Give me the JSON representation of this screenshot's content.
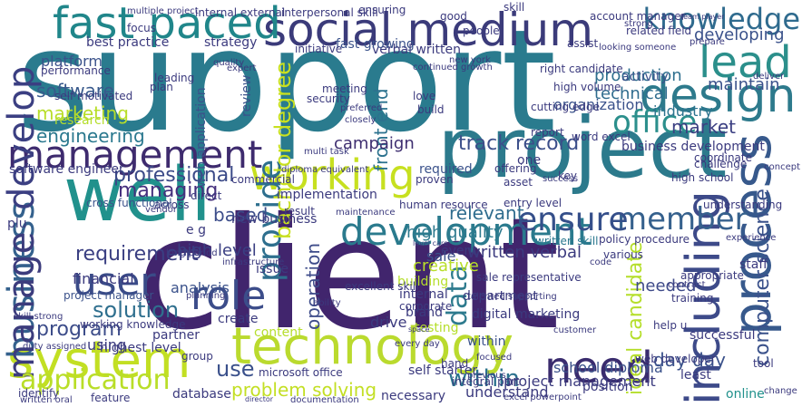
{
  "colors": {
    "background": "#ffffff",
    "palette": [
      "#440154",
      "#3b528b",
      "#21918c",
      "#5ec962",
      "#b5de2b",
      "#fde725"
    ]
  },
  "words": [
    {
      "text": "support",
      "color": "#2a7b8e"
    },
    {
      "text": "client",
      "color": "#41256d"
    },
    {
      "text": "well",
      "color": "#21918c"
    },
    {
      "text": "project",
      "color": "#2c7a8c"
    },
    {
      "text": "social medium",
      "color": "#3b3b7a"
    },
    {
      "text": "fast paced",
      "color": "#20868a"
    },
    {
      "text": "system",
      "color": "#c2df23"
    },
    {
      "text": "technology",
      "color": "#bada2e"
    },
    {
      "text": "management",
      "color": "#3e2b6e"
    },
    {
      "text": "working",
      "color": "#c7e020"
    },
    {
      "text": "development",
      "color": "#2a7a8d"
    },
    {
      "text": "need",
      "color": "#3a2c6e"
    },
    {
      "text": "design",
      "color": "#2d7a8c"
    },
    {
      "text": "lead",
      "color": "#2b8f8b"
    },
    {
      "text": "knowledge",
      "color": "#2f6b8e"
    },
    {
      "text": "role",
      "color": "#3c4d8a"
    },
    {
      "text": "process",
      "color": "#37598c"
    },
    {
      "text": "including",
      "color": "#3d4a89"
    },
    {
      "text": "business",
      "color": "#34618d"
    },
    {
      "text": "develop",
      "color": "#3b3f82"
    },
    {
      "text": "manage",
      "color": "#3c3c7d"
    },
    {
      "text": "user",
      "color": "#3a4b88"
    },
    {
      "text": "provide",
      "color": "#2e6f8e"
    },
    {
      "text": "member",
      "color": "#36618d"
    },
    {
      "text": "ensure",
      "color": "#354f8a"
    },
    {
      "text": "office",
      "color": "#2b8f8c"
    },
    {
      "text": "data",
      "color": "#2e7b8e"
    },
    {
      "text": "application",
      "color": "#b9de28"
    },
    {
      "text": "use",
      "color": "#3a508b"
    },
    {
      "text": "within",
      "color": "#2c738e"
    },
    {
      "text": "requirement",
      "color": "#3a3f82"
    },
    {
      "text": "professional",
      "color": "#3b4a88"
    },
    {
      "text": "solution",
      "color": "#2f6f8e"
    },
    {
      "text": "computer science",
      "color": "#3b528b"
    },
    {
      "text": "ideal candidate",
      "color": "#b5de2b"
    },
    {
      "text": "program",
      "color": "#3c4c89"
    },
    {
      "text": "managing",
      "color": "#46307e"
    },
    {
      "text": "bachelor degree",
      "color": "#c8e020"
    },
    {
      "text": "front end",
      "color": "#2c728e"
    },
    {
      "text": "operation",
      "color": "#3e4c8a"
    },
    {
      "text": "marketing",
      "color": "#b8de29"
    },
    {
      "text": "engineering",
      "color": "#2a788e"
    },
    {
      "text": "software",
      "color": "#38598c"
    },
    {
      "text": "track record",
      "color": "#3c4f8a"
    },
    {
      "text": "campaign",
      "color": "#3e2e70"
    },
    {
      "text": "industry",
      "color": "#2c738e"
    },
    {
      "text": "technical",
      "color": "#2f6c8e"
    },
    {
      "text": "production",
      "color": "#2e6f8e"
    },
    {
      "text": "market",
      "color": "#3b3f82"
    },
    {
      "text": "relevant",
      "color": "#2f6c8e"
    },
    {
      "text": "high level",
      "color": "#3a3f82"
    },
    {
      "text": "based",
      "color": "#3c4d8a"
    },
    {
      "text": "problem solving",
      "color": "#c3df24"
    },
    {
      "text": "project management",
      "color": "#3b3a7e"
    },
    {
      "text": "written verbal",
      "color": "#3b3a7e"
    },
    {
      "text": "within",
      "color": "#3b528b"
    },
    {
      "text": "day day",
      "color": "#3b528b"
    },
    {
      "text": "sale",
      "color": "#3b528b"
    },
    {
      "text": "needed",
      "color": "#3e4a89"
    },
    {
      "text": "high quality",
      "color": "#2e7a8e"
    },
    {
      "text": "creative",
      "color": "#b8de29"
    },
    {
      "text": "financial",
      "color": "#3b3a7e"
    },
    {
      "text": "organization",
      "color": "#3b528b"
    },
    {
      "text": "business development",
      "color": "#3b3a7e"
    },
    {
      "text": "written skill",
      "color": "#2a788e"
    },
    {
      "text": "maintain",
      "color": "#3b528b"
    },
    {
      "text": "developing",
      "color": "#3b528b"
    },
    {
      "text": "strategy",
      "color": "#3b3a7e"
    },
    {
      "text": "implementation",
      "color": "#3b3a7e"
    },
    {
      "text": "software engineer",
      "color": "#3b3a7e"
    },
    {
      "text": "new business",
      "color": "#3b3a7e"
    },
    {
      "text": "school diploma",
      "color": "#3b528b"
    },
    {
      "text": "digital marketing",
      "color": "#3b3a7e"
    },
    {
      "text": "department",
      "color": "#3b3a7e"
    },
    {
      "text": "internal",
      "color": "#3b3a7e"
    },
    {
      "text": "building",
      "color": "#b5de2b"
    },
    {
      "text": "analysis",
      "color": "#3b528b"
    },
    {
      "text": "issue",
      "color": "#3b3a7e"
    },
    {
      "text": "create",
      "color": "#3b3a7e"
    },
    {
      "text": "partner",
      "color": "#3b3a7e"
    },
    {
      "text": "highest level",
      "color": "#3b3a7e"
    },
    {
      "text": "using",
      "color": "#3b3a7e"
    },
    {
      "text": "understand",
      "color": "#3b3a7e"
    },
    {
      "text": "position",
      "color": "#3b3a7e"
    },
    {
      "text": "least",
      "color": "#3b3a7e"
    },
    {
      "text": "online",
      "color": "#21918c"
    },
    {
      "text": "hand",
      "color": "#3b3a7e"
    },
    {
      "text": "brand",
      "color": "#3b3a7e"
    },
    {
      "text": "drive",
      "color": "#3b3a7e"
    },
    {
      "text": "event",
      "color": "#3b3a7e"
    },
    {
      "text": "policy procedure",
      "color": "#3b3a7e"
    },
    {
      "text": "staff",
      "color": "#3b3a7e"
    },
    {
      "text": "successful",
      "color": "#3b3a7e"
    },
    {
      "text": "various",
      "color": "#3b3a7e"
    },
    {
      "text": "appropriate",
      "color": "#3b3a7e"
    },
    {
      "text": "training",
      "color": "#3b3a7e"
    },
    {
      "text": "high school",
      "color": "#3b3a7e"
    },
    {
      "text": "platform",
      "color": "#3b528b"
    },
    {
      "text": "performance",
      "color": "#3b3a7e"
    },
    {
      "text": "research",
      "color": "#b5de2b"
    },
    {
      "text": "best practice",
      "color": "#3b3a7e"
    },
    {
      "text": "self motivated",
      "color": "#3b3a7e"
    },
    {
      "text": "verbal written",
      "color": "#3b3a7e"
    },
    {
      "text": "fast growing",
      "color": "#3b528b"
    },
    {
      "text": "focus",
      "color": "#3b3a7e"
    },
    {
      "text": "initiative",
      "color": "#3b3a7e"
    },
    {
      "text": "new york",
      "color": "#3b3a7e"
    },
    {
      "text": "activity",
      "color": "#3b528b"
    },
    {
      "text": "related field",
      "color": "#3b3a7e"
    },
    {
      "text": "account manager",
      "color": "#3b3a7e"
    },
    {
      "text": "assist",
      "color": "#3b3a7e"
    },
    {
      "text": "looking someone",
      "color": "#3b3a7e"
    },
    {
      "text": "prepare",
      "color": "#3b3a7e"
    },
    {
      "text": "strong",
      "color": "#3b3a7e"
    },
    {
      "text": "good",
      "color": "#3b3a7e"
    },
    {
      "text": "people",
      "color": "#3b3a7e"
    },
    {
      "text": "expert",
      "color": "#3b3a7e"
    },
    {
      "text": "web application",
      "color": "#3b528b"
    },
    {
      "text": "leading",
      "color": "#3b3a7e"
    },
    {
      "text": "plan",
      "color": "#3b3a7e"
    },
    {
      "text": "review",
      "color": "#3b528b"
    },
    {
      "text": "security",
      "color": "#3b3a7e"
    },
    {
      "text": "love",
      "color": "#3b3a7e"
    },
    {
      "text": "build",
      "color": "#3b3a7e"
    },
    {
      "text": "meeting",
      "color": "#3b3a7e"
    },
    {
      "text": "right candidate",
      "color": "#3b3a7e"
    },
    {
      "text": "high volume",
      "color": "#3b3a7e"
    },
    {
      "text": "cutting edge",
      "color": "#3b3a7e"
    },
    {
      "text": "report",
      "color": "#3b3a7e"
    },
    {
      "text": "word excel",
      "color": "#3b3a7e"
    },
    {
      "text": "coordinate",
      "color": "#3b3a7e"
    },
    {
      "text": "concept",
      "color": "#3b3a7e"
    },
    {
      "text": "understanding",
      "color": "#3b3a7e"
    },
    {
      "text": "required",
      "color": "#3b528b"
    },
    {
      "text": "human resource",
      "color": "#3b3a7e"
    },
    {
      "text": "proven",
      "color": "#3b3a7e"
    },
    {
      "text": "offering",
      "color": "#3b3a7e"
    },
    {
      "text": "asset",
      "color": "#3b3a7e"
    },
    {
      "text": "key",
      "color": "#3b3a7e"
    },
    {
      "text": "one",
      "color": "#3b3a7e"
    },
    {
      "text": "excellent skill",
      "color": "#3b3a7e"
    },
    {
      "text": "level care",
      "color": "#3b3a7e"
    },
    {
      "text": "sale representative",
      "color": "#3b3a7e"
    },
    {
      "text": "microsoft office",
      "color": "#3b3a7e"
    },
    {
      "text": "self starter",
      "color": "#3b3a7e"
    },
    {
      "text": "integral part",
      "color": "#3b3a7e"
    },
    {
      "text": "excel powerpoint",
      "color": "#3b3a7e"
    },
    {
      "text": "every day",
      "color": "#3b3a7e"
    },
    {
      "text": "content",
      "color": "#b5de2b"
    },
    {
      "text": "group",
      "color": "#3b3a7e"
    },
    {
      "text": "database",
      "color": "#3b3a7e"
    },
    {
      "text": "feature",
      "color": "#3b3a7e"
    },
    {
      "text": "director",
      "color": "#3b3a7e"
    },
    {
      "text": "documentation",
      "color": "#3b3a7e"
    },
    {
      "text": "necessary",
      "color": "#3b3a7e"
    },
    {
      "text": "previous",
      "color": "#3b3a7e"
    },
    {
      "text": "identify",
      "color": "#3b3a7e"
    },
    {
      "text": "written oral",
      "color": "#3b3a7e"
    },
    {
      "text": "duty assigned",
      "color": "#3b3a7e"
    },
    {
      "text": "skill strong",
      "color": "#3b3a7e"
    },
    {
      "text": "project manager",
      "color": "#3b528b"
    },
    {
      "text": "working knowledge",
      "color": "#3b3a7e"
    },
    {
      "text": "plu",
      "color": "#3b3a7e"
    },
    {
      "text": "e g",
      "color": "#3b3a7e"
    },
    {
      "text": "direct",
      "color": "#3b3a7e"
    },
    {
      "text": "vendor",
      "color": "#3b3a7e"
    },
    {
      "text": "across",
      "color": "#3b3a7e"
    },
    {
      "text": "commercial",
      "color": "#3b3a7e"
    },
    {
      "text": "result",
      "color": "#3b3a7e"
    },
    {
      "text": "testing",
      "color": "#b5de2b"
    },
    {
      "text": "internal external",
      "color": "#3b3a7e"
    },
    {
      "text": "multiple project",
      "color": "#3b3a7e"
    },
    {
      "text": "interpersonal skill",
      "color": "#3b3a7e"
    },
    {
      "text": "ensuring",
      "color": "#3b3a7e"
    },
    {
      "text": "diploma equivalent",
      "color": "#3b3a7e"
    },
    {
      "text": "multi task",
      "color": "#3b3a7e"
    },
    {
      "text": "infrastructure",
      "color": "#3b3a7e"
    },
    {
      "text": "cross functional",
      "color": "#3b528b"
    },
    {
      "text": "long period",
      "color": "#3b3a7e"
    },
    {
      "text": "planning",
      "color": "#3b3a7e"
    },
    {
      "text": "challenge",
      "color": "#3b3a7e"
    },
    {
      "text": "corporate",
      "color": "#3b3a7e"
    },
    {
      "text": "entry level",
      "color": "#3b3a7e"
    },
    {
      "text": "help u",
      "color": "#3b3a7e"
    },
    {
      "text": "web developer",
      "color": "#3b3a7e"
    },
    {
      "text": "change",
      "color": "#3b3a7e"
    },
    {
      "text": "deliver",
      "color": "#3b3a7e"
    },
    {
      "text": "talented supporting",
      "color": "#3b3a7e"
    },
    {
      "text": "continued growth",
      "color": "#3b3a7e"
    },
    {
      "text": "closely",
      "color": "#3b3a7e"
    },
    {
      "text": "preferred",
      "color": "#3b3a7e"
    },
    {
      "text": "maintenance",
      "color": "#3b3a7e"
    },
    {
      "text": "team player",
      "color": "#3b3a7e"
    },
    {
      "text": "contract",
      "color": "#3b3a7e"
    },
    {
      "text": "customer",
      "color": "#3b3a7e"
    },
    {
      "text": "success",
      "color": "#3b3a7e"
    },
    {
      "text": "code",
      "color": "#3b3a7e"
    },
    {
      "text": "space",
      "color": "#3b3a7e"
    },
    {
      "text": "tool",
      "color": "#3b3a7e"
    },
    {
      "text": "focused",
      "color": "#3b3a7e"
    },
    {
      "text": "experience",
      "color": "#3b3a7e"
    },
    {
      "text": "ability",
      "color": "#3b3a7e"
    },
    {
      "text": "quality",
      "color": "#3b3a7e"
    },
    {
      "text": "skill",
      "color": "#3b3a7e"
    }
  ]
}
